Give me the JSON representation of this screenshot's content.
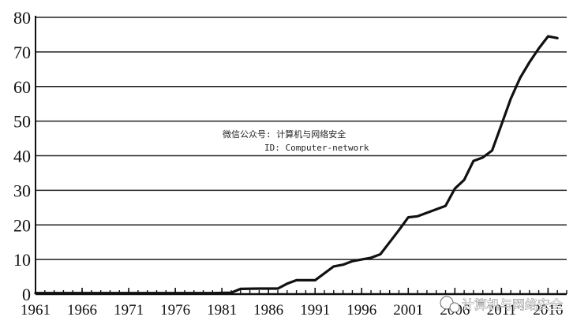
{
  "chart_data": {
    "type": "line",
    "title": "",
    "xlabel": "",
    "ylabel": "",
    "ylim": [
      0,
      80
    ],
    "xlim": [
      1961,
      2018
    ],
    "yticks": [
      "0",
      "10",
      "20",
      "30",
      "40",
      "50",
      "60",
      "70",
      "80"
    ],
    "xticks": [
      "1961",
      "1966",
      "1971",
      "1976",
      "1981",
      "1986",
      "1991",
      "1996",
      "2001",
      "2006",
      "2011",
      "2016"
    ],
    "grid": "horizontal",
    "series": [
      {
        "x": [
          1961,
          1965,
          1970,
          1975,
          1980,
          1982,
          1983,
          1985,
          1987,
          1988,
          1989,
          1990,
          1991,
          1992,
          1993,
          1994,
          1995,
          1996,
          1997,
          1998,
          1999,
          2000,
          2001,
          2002,
          2003,
          2004,
          2005,
          2006,
          2007,
          2008,
          2009,
          2010,
          2011,
          2012,
          2013,
          2014,
          2015,
          2016,
          2017
        ],
        "y": [
          0.3,
          0.3,
          0.3,
          0.3,
          0.3,
          0.4,
          1.5,
          1.6,
          1.6,
          3.0,
          4.0,
          4.0,
          4.0,
          6.0,
          8.0,
          8.5,
          9.5,
          10.0,
          10.5,
          11.5,
          15.0,
          18.5,
          22.2,
          22.5,
          23.5,
          24.5,
          25.5,
          30.5,
          33.0,
          38.5,
          39.5,
          41.5,
          49.0,
          56.5,
          62.5,
          67.0,
          71.0,
          74.5,
          74.0
        ],
        "color": "#111111"
      }
    ]
  },
  "overlay": {
    "line1": "微信公众号: 计算机与网络安全",
    "line2": "ID: Computer-network"
  },
  "watermark": {
    "text": "计算机与网络安全"
  }
}
